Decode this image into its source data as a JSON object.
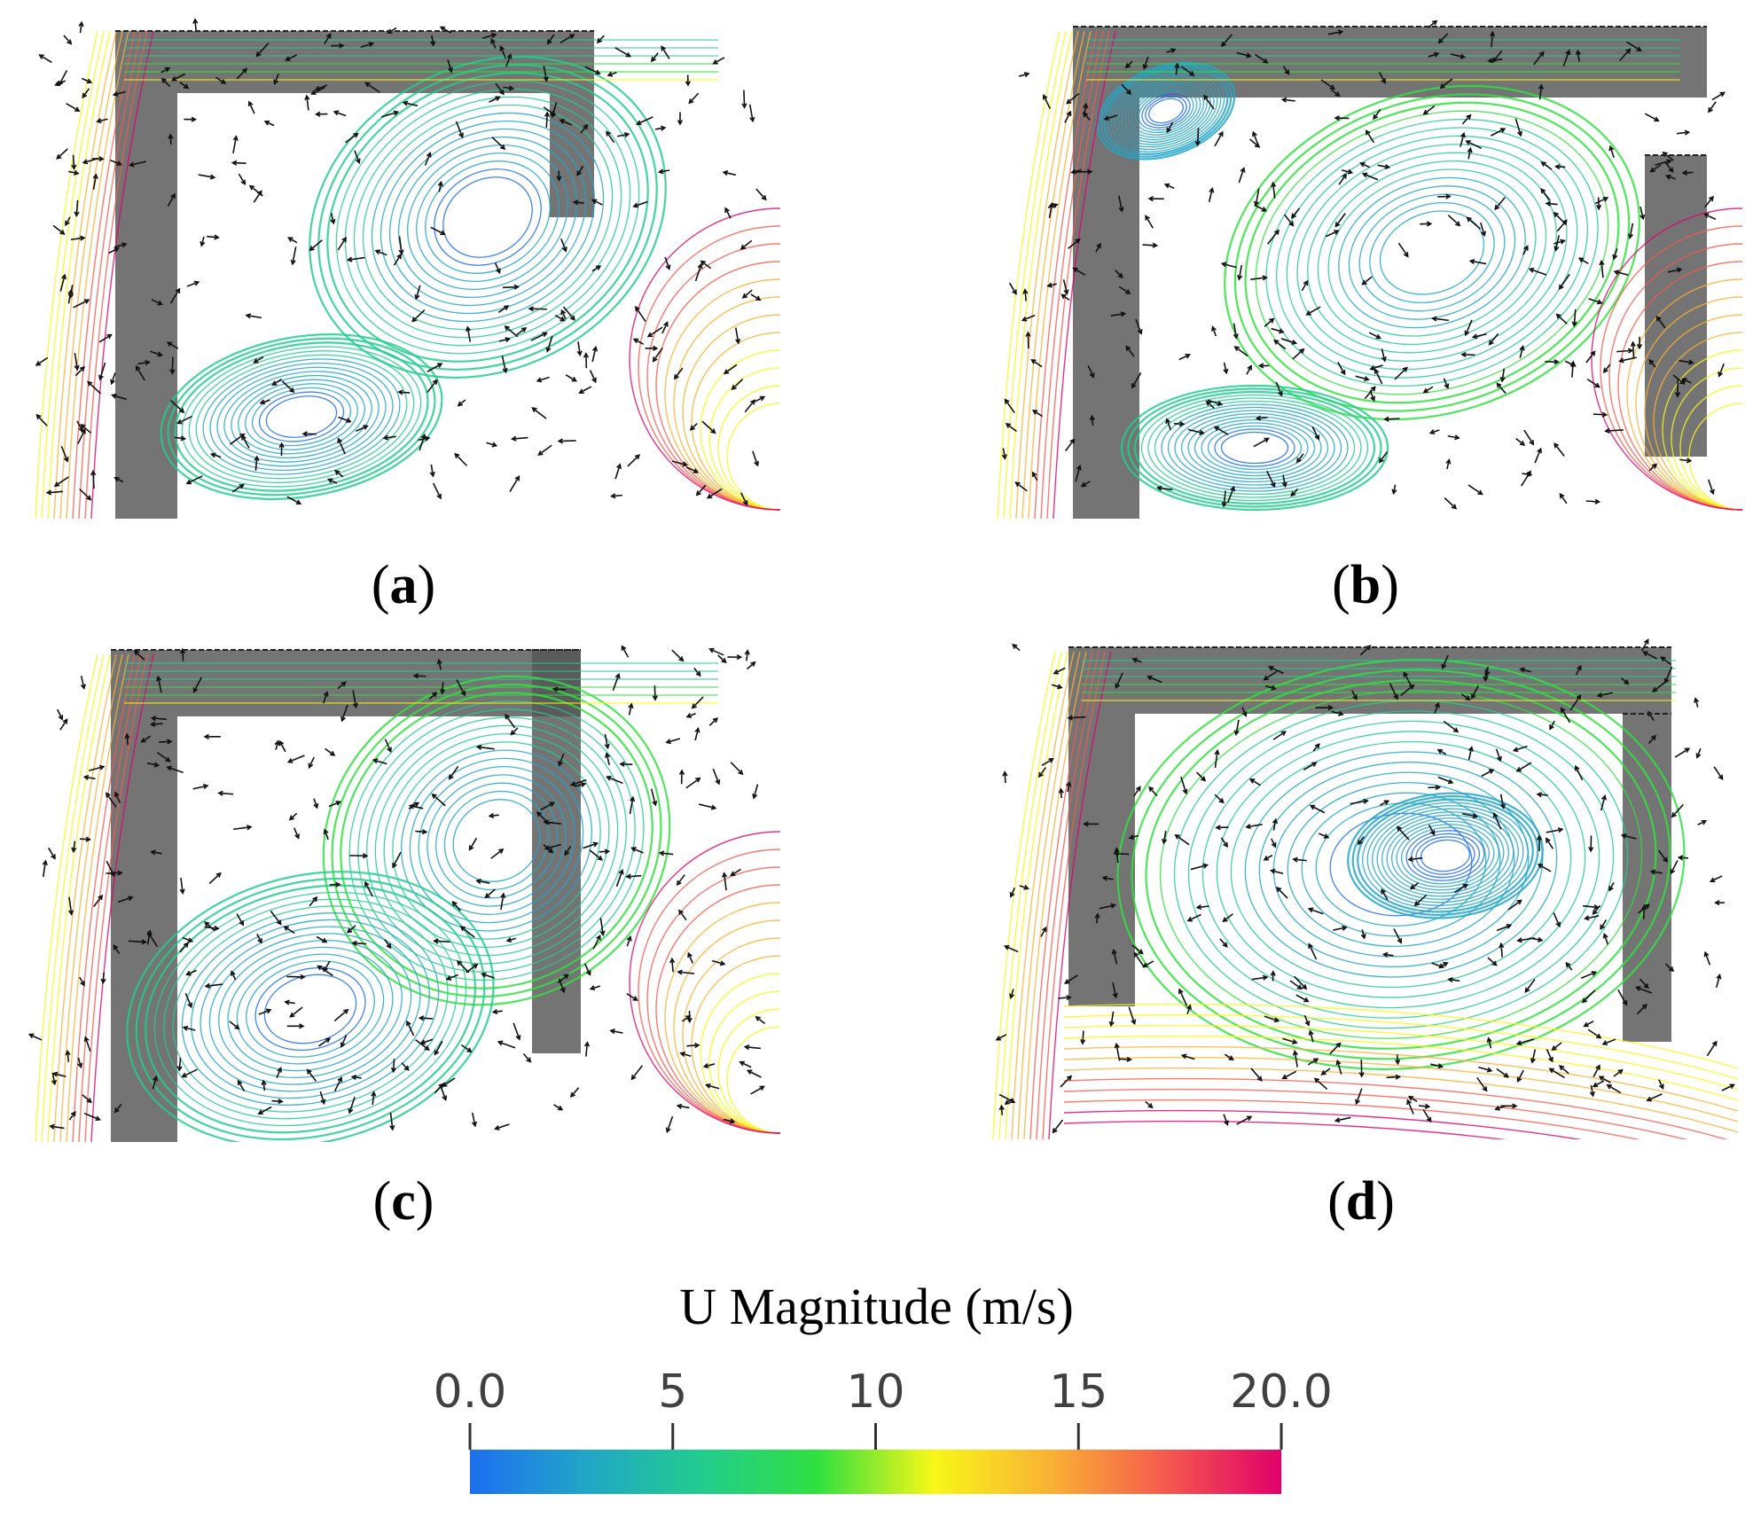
{
  "panels": [
    {
      "id": "a",
      "caption": "a",
      "layout": "a"
    },
    {
      "id": "b",
      "caption": "b",
      "layout": "b"
    },
    {
      "id": "c",
      "caption": "c",
      "layout": "c"
    },
    {
      "id": "d",
      "caption": "d",
      "layout": "d"
    }
  ],
  "colorbar": {
    "title": "U Magnitude (m/s)",
    "min": 0.0,
    "max": 20.0,
    "ticks": [
      {
        "value": 0,
        "label": "0.0"
      },
      {
        "value": 5,
        "label": "5"
      },
      {
        "value": 10,
        "label": "10"
      },
      {
        "value": 15,
        "label": "15"
      },
      {
        "value": 20,
        "label": "20.0"
      }
    ],
    "colormap": [
      "#1e6ff0",
      "#21a6c8",
      "#22cc8e",
      "#30e040",
      "#f7f718",
      "#f9b235",
      "#f55a4e",
      "#e0006a"
    ]
  }
}
